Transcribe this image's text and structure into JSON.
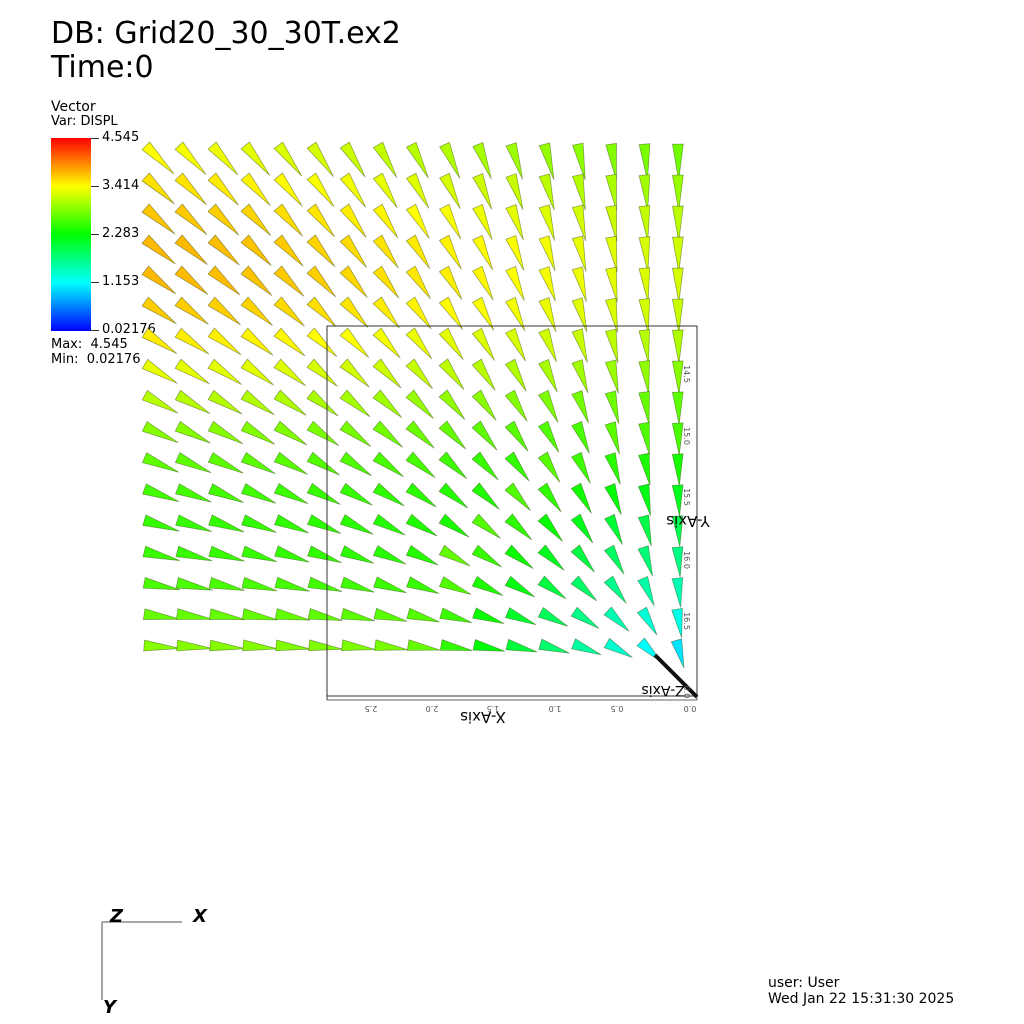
{
  "header": {
    "db_label": "DB: Grid20_30_30T.ex2",
    "time_label": "Time:0"
  },
  "legend": {
    "title": "Vector",
    "var": "Var: DISPL",
    "ticks": [
      "4.545",
      "3.414",
      "2.283",
      "1.153",
      "0.02176"
    ],
    "max": "Max:  4.545",
    "min": "Min:  0.02176"
  },
  "axes": {
    "x_axis_title": "X-Axis",
    "y_axis_title": "Y-Axis",
    "z_axis_title": "Z-Axis",
    "x_ticks": [
      "2.5",
      "2.0",
      "1.5",
      "1.0",
      "0.5",
      "0.0"
    ],
    "y_ticks": [
      "14.5",
      "15.0",
      "15.5",
      "16.0",
      "16.5",
      "0.0"
    ]
  },
  "triad": {
    "z": "Z",
    "x": "X",
    "y": "Y"
  },
  "footer": {
    "user": "user: User",
    "date": "Wed Jan 22 15:31:30 2025"
  },
  "colors": {
    "colormap": [
      "#0000ff",
      "#00ffff",
      "#00ff00",
      "#ffff00",
      "#ff0000"
    ],
    "background": "#ffffff"
  },
  "scene": {
    "data_min": 0.02176,
    "data_max": 4.545
  }
}
